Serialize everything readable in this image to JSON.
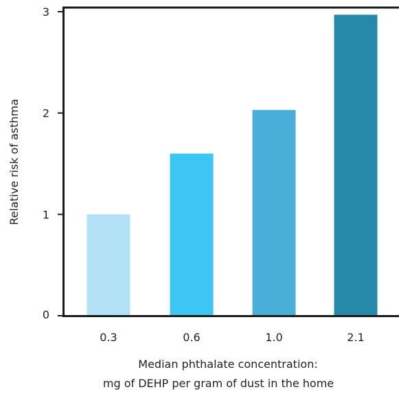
{
  "chart_data": {
    "type": "bar",
    "categories": [
      "0.3",
      "0.6",
      "1.0",
      "2.1"
    ],
    "values": [
      1.0,
      1.6,
      2.03,
      2.97
    ],
    "bar_colors": [
      "#b3e2f7",
      "#3dc6f2",
      "#4aaed9",
      "#2689aa"
    ],
    "title": "",
    "xlabel_line1": "Median phthalate concentration:",
    "xlabel_line2": "mg of DEHP per gram of dust in the home",
    "ylabel": "Relative risk of asthma",
    "ylim": [
      0,
      3
    ],
    "yticks": [
      "0",
      "1",
      "2",
      "3"
    ],
    "grid": false,
    "legend": "none"
  }
}
